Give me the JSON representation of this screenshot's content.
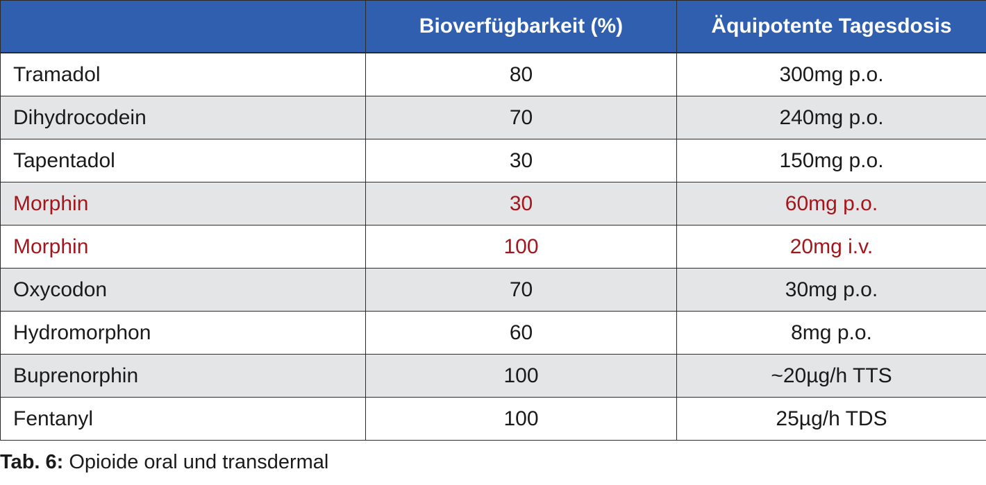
{
  "table": {
    "headers": [
      "",
      "Bioverfügbarkeit (%)",
      "Äquipotente Tagesdosis"
    ],
    "rows": [
      {
        "name": "Tramadol",
        "bioavailability": "80",
        "dose": "300mg p.o."
      },
      {
        "name": "Dihydrocodein",
        "bioavailability": "70",
        "dose": "240mg p.o."
      },
      {
        "name": "Tapentadol",
        "bioavailability": "30",
        "dose": "150mg p.o."
      },
      {
        "name": "Morphin",
        "bioavailability": "30",
        "dose": "60mg p.o."
      },
      {
        "name": "Morphin",
        "bioavailability": "100",
        "dose": "20mg i.v."
      },
      {
        "name": "Oxycodon",
        "bioavailability": "70",
        "dose": "30mg p.o."
      },
      {
        "name": "Hydromorphon",
        "bioavailability": "60",
        "dose": "8mg p.o."
      },
      {
        "name": "Buprenorphin",
        "bioavailability": "100",
        "dose": "~20µg/h TTS"
      },
      {
        "name": "Fentanyl",
        "bioavailability": "100",
        "dose": "25µg/h TDS"
      }
    ]
  },
  "caption": {
    "label": "Tab. 6:",
    "text": " Opioide oral und transdermal"
  },
  "colors": {
    "header_bg": "#2f5fae",
    "header_text": "#ffffff",
    "row_shade": "#e4e5e7",
    "highlight_text": "#a5161c"
  }
}
